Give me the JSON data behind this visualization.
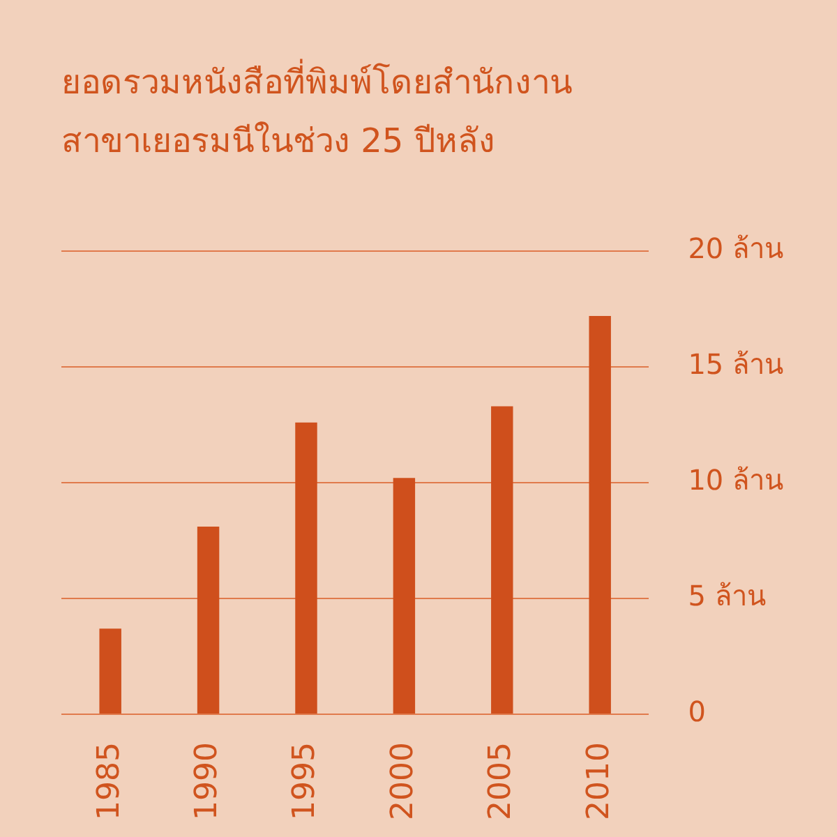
{
  "chart_data": {
    "type": "bar",
    "title": "ยอดรวมหนังสือที่พิมพ์โดยสำนักงานสาขาเยอรมนีในช่วง 25 ปีหลัง",
    "categories": [
      "1985",
      "1990",
      "1995",
      "2000",
      "2005",
      "2010"
    ],
    "values": [
      3.7,
      8.1,
      12.6,
      10.2,
      13.3,
      17.2
    ],
    "color": "#cf4f1c",
    "ylim": [
      0,
      20
    ],
    "yticks": [
      0,
      {
        "value": 5,
        "label": "5 ล้าน"
      },
      {
        "value": 10,
        "label": "10 ล้าน"
      },
      {
        "value": 15,
        "label": "15 ล้าน"
      },
      {
        "value": 20,
        "label": "20 ล้าน"
      }
    ],
    "grid": "y",
    "legend": false
  }
}
